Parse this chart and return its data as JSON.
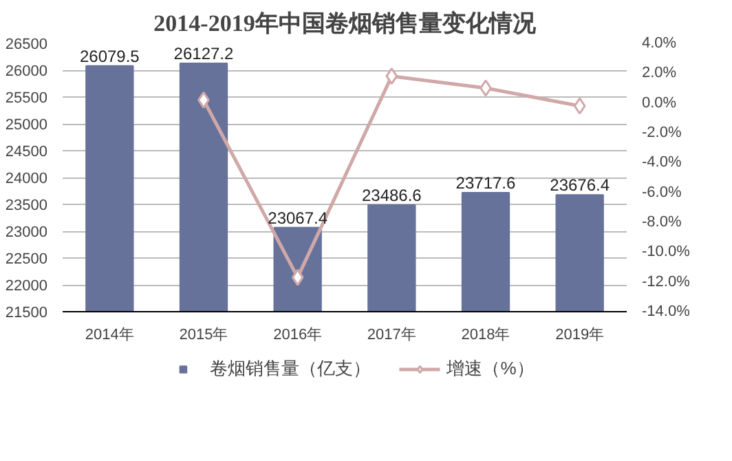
{
  "chart_data": {
    "type": "bar",
    "title": "2014-2019年中国卷烟销售量变化情况",
    "categories": [
      "2014年",
      "2015年",
      "2016年",
      "2017年",
      "2018年",
      "2019年"
    ],
    "series": [
      {
        "name": "卷烟销售量（亿支）",
        "color": "#67729b",
        "values": [
          26079.5,
          26127.2,
          23067.4,
          23486.6,
          23717.6,
          23676.4
        ],
        "value_labels": [
          "26079.5",
          "26127.2",
          "23067.4",
          "23486.6",
          "23717.6",
          "23676.4"
        ]
      },
      {
        "name": "增速（%）",
        "type": "line",
        "axis": "y2",
        "color": "#d0a8a8",
        "marker": "diamond",
        "values": [
          null,
          0.2,
          -11.7,
          1.8,
          1.0,
          -0.2
        ]
      }
    ],
    "ylim": [
      21500,
      26500
    ],
    "yticks": [
      21500,
      22000,
      22500,
      23000,
      23500,
      24000,
      24500,
      25000,
      25500,
      26000,
      26500
    ],
    "y2lim": [
      -14,
      4
    ],
    "y2ticks": [
      {
        "value": -14,
        "label": "-14.0%"
      },
      {
        "value": -12,
        "label": "-12.0%"
      },
      {
        "value": -10,
        "label": "-10.0%"
      },
      {
        "value": -8,
        "label": "-8.0%"
      },
      {
        "value": -6,
        "label": "-6.0%"
      },
      {
        "value": -4,
        "label": "-4.0%"
      },
      {
        "value": -2,
        "label": "-2.0%"
      },
      {
        "value": 0,
        "label": "0.0%"
      },
      {
        "value": 2,
        "label": "2.0%"
      },
      {
        "value": 4,
        "label": "4.0%"
      }
    ],
    "grid": "y",
    "legend": "bottom"
  }
}
